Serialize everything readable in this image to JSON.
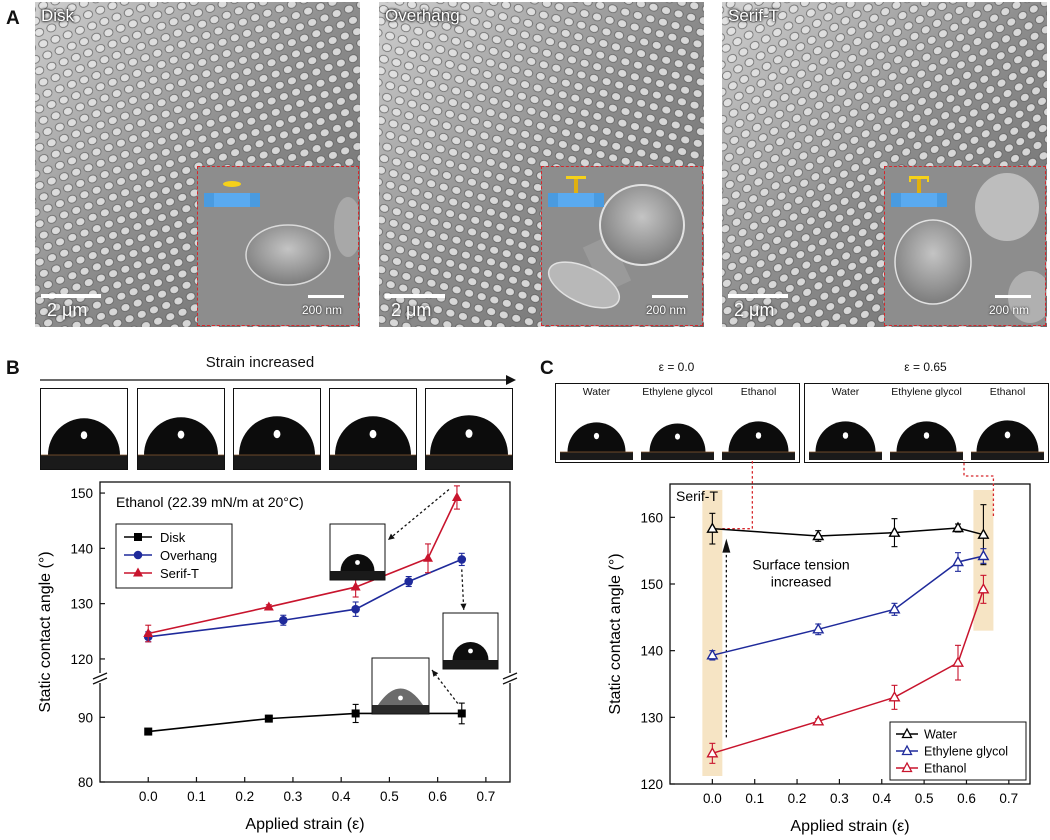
{
  "panel_a": {
    "letter": "A",
    "images": [
      {
        "label": "Disk",
        "main_scale": "2 μm",
        "inset_scale": "200 nm"
      },
      {
        "label": "Overhang",
        "main_scale": "2 μm",
        "inset_scale": "200 nm"
      },
      {
        "label": "Serif-T",
        "main_scale": "2 μm",
        "inset_scale": "200 nm"
      }
    ]
  },
  "panel_b": {
    "letter": "B",
    "strain_arrow_label": "Strain increased"
  },
  "panel_c": {
    "letter": "C",
    "groups": [
      {
        "title": "ε = 0.0",
        "labels": [
          "Water",
          "Ethylene glycol",
          "Ethanol"
        ]
      },
      {
        "title": "ε = 0.65",
        "labels": [
          "Water",
          "Ethylene glycol",
          "Ethanol"
        ]
      }
    ]
  },
  "chart_data": [
    {
      "type": "line",
      "title": "Ethanol (22.39 mN/m at 20°C)",
      "xlabel": "Applied strain (ε)",
      "ylabel": "Static contact angle (°)",
      "xlim": [
        -0.1,
        0.75
      ],
      "x_ticks": [
        "0.0",
        "0.1",
        "0.2",
        "0.3",
        "0.4",
        "0.5",
        "0.6",
        "0.7"
      ],
      "y_ticks_upper": [
        "120",
        "130",
        "140",
        "150"
      ],
      "y_ticks_lower": [
        "80",
        "90"
      ],
      "axis_break": "between 90 and 120",
      "legend_position": "upper-left",
      "series": [
        {
          "name": "Disk",
          "marker": "square",
          "color": "#000000",
          "x": [
            0.0,
            0.25,
            0.43,
            0.65
          ],
          "y": [
            87.8,
            89.8,
            90.6,
            90.6
          ],
          "err": [
            0.3,
            0.5,
            1.4,
            1.6
          ]
        },
        {
          "name": "Overhang",
          "marker": "circle",
          "color": "#1f2a9b",
          "x": [
            0.0,
            0.28,
            0.43,
            0.54,
            0.65
          ],
          "y": [
            124.0,
            127.0,
            129.0,
            134.0,
            138.0
          ],
          "err": [
            0.9,
            0.9,
            1.3,
            0.9,
            1.1
          ]
        },
        {
          "name": "Serif-T",
          "marker": "triangle",
          "color": "#c8142d",
          "x": [
            0.0,
            0.25,
            0.43,
            0.58,
            0.64
          ],
          "y": [
            124.6,
            129.4,
            133.0,
            138.2,
            149.2
          ],
          "err": [
            1.5,
            0.4,
            1.8,
            2.6,
            2.1
          ]
        }
      ]
    },
    {
      "type": "line",
      "title": "Serif-T",
      "xlabel": "Applied strain (ε)",
      "ylabel": "Static contact angle (°)",
      "xlim": [
        -0.1,
        0.75
      ],
      "ylim": [
        120,
        165
      ],
      "x_ticks": [
        "0.0",
        "0.1",
        "0.2",
        "0.3",
        "0.4",
        "0.5",
        "0.6",
        "0.7"
      ],
      "y_ticks": [
        "120",
        "130",
        "140",
        "150",
        "160"
      ],
      "annotation": "Surface tension increased",
      "legend_position": "lower-right",
      "series": [
        {
          "name": "Water",
          "marker": "open-triangle",
          "color": "#000000",
          "x": [
            0.0,
            0.25,
            0.43,
            0.58,
            0.64
          ],
          "y": [
            158.3,
            157.2,
            157.7,
            158.4,
            157.4
          ],
          "err": [
            2.3,
            0.8,
            2.1,
            0.6,
            4.5
          ]
        },
        {
          "name": "Ethylene glycol",
          "marker": "open-triangle",
          "color": "#1f2a9b",
          "x": [
            0.0,
            0.25,
            0.43,
            0.58,
            0.64
          ],
          "y": [
            139.3,
            143.2,
            146.2,
            153.3,
            154.2
          ],
          "err": [
            0.7,
            0.8,
            0.9,
            1.4,
            1.1
          ]
        },
        {
          "name": "Ethanol",
          "marker": "open-triangle",
          "color": "#c8142d",
          "x": [
            0.0,
            0.25,
            0.43,
            0.58,
            0.64
          ],
          "y": [
            124.6,
            129.4,
            133.0,
            138.2,
            149.2
          ],
          "err": [
            1.5,
            0.4,
            1.8,
            2.6,
            2.1
          ]
        }
      ]
    }
  ]
}
